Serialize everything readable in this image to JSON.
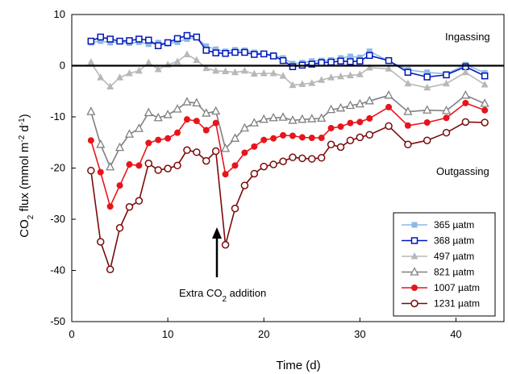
{
  "chart_data": {
    "type": "line",
    "xlabel": "Time (d)",
    "ylabel": {
      "prefix": "CO",
      "sub": "2",
      "middle": " flux (mmol m",
      "sup1": "-2",
      "space": " d",
      "sup2": "-1",
      "suffix": ")"
    },
    "xlim": [
      0,
      45
    ],
    "ylim": [
      -50,
      10
    ],
    "x_ticks": [
      0,
      10,
      20,
      30,
      40
    ],
    "y_ticks": [
      -50,
      -40,
      -30,
      -20,
      -10,
      0,
      10
    ],
    "zero_line": 0,
    "annotations": {
      "ingassing": "Ingassing",
      "outgassing": "Outgassing",
      "extra": {
        "prefix": "Extra CO",
        "sub": "2",
        "suffix": " addition"
      }
    },
    "series": [
      {
        "name": "365 µatm",
        "color": "#8db9e6",
        "marker": "square-filled",
        "x": [
          2,
          3,
          4,
          5,
          6,
          7,
          8,
          9,
          10,
          11,
          12,
          13,
          14,
          15,
          16,
          17,
          18,
          19,
          20,
          21,
          22,
          23,
          24,
          25,
          26,
          27,
          28,
          29,
          30,
          31,
          33,
          35,
          37,
          39,
          41,
          43
        ],
        "y": [
          4.5,
          4.8,
          4.5,
          4.7,
          4.4,
          4.6,
          4.2,
          4.5,
          4.3,
          4.6,
          5.2,
          5.5,
          3.8,
          3.2,
          2.8,
          3.1,
          3.0,
          2.6,
          2.3,
          2.1,
          1.5,
          0.4,
          0.6,
          0.9,
          1.0,
          1.1,
          1.5,
          1.8,
          1.6,
          2.8,
          0.9,
          -0.8,
          -1.3,
          -1.6,
          0.2,
          -1.4
        ]
      },
      {
        "name": "368 µatm",
        "color": "#0018b8",
        "marker": "square-open",
        "x": [
          2,
          3,
          4,
          5,
          6,
          7,
          8,
          9,
          10,
          11,
          12,
          13,
          14,
          15,
          16,
          17,
          18,
          19,
          20,
          21,
          22,
          23,
          24,
          25,
          26,
          27,
          28,
          29,
          30,
          31,
          33,
          35,
          37,
          39,
          41,
          43
        ],
        "y": [
          4.8,
          5.6,
          5.2,
          4.8,
          4.9,
          5.2,
          5.0,
          3.9,
          4.5,
          5.3,
          5.9,
          5.6,
          3.0,
          2.5,
          2.4,
          2.6,
          2.6,
          2.2,
          2.3,
          1.9,
          1.0,
          -0.2,
          0.1,
          0.3,
          0.6,
          0.7,
          0.9,
          0.8,
          0.9,
          2.0,
          1.0,
          -1.3,
          -2.2,
          -1.8,
          -0.2,
          -2.0
        ]
      },
      {
        "name": "497 µatm",
        "color": "#b8b8b8",
        "marker": "triangle-filled",
        "x": [
          2,
          3,
          4,
          5,
          6,
          7,
          8,
          9,
          10,
          11,
          12,
          13,
          14,
          15,
          16,
          17,
          18,
          19,
          20,
          21,
          22,
          23,
          24,
          25,
          26,
          27,
          28,
          29,
          30,
          31,
          33,
          35,
          37,
          39,
          41,
          43
        ],
        "y": [
          0.7,
          -2.3,
          -4.1,
          -2.3,
          -1.5,
          -1.0,
          0.6,
          -0.7,
          0.2,
          0.8,
          2.2,
          1.1,
          -0.5,
          -1.0,
          -1.1,
          -1.3,
          -1.0,
          -1.6,
          -1.5,
          -1.5,
          -2.0,
          -3.8,
          -3.6,
          -3.4,
          -2.8,
          -2.3,
          -2.1,
          -1.9,
          -1.7,
          -0.4,
          -0.6,
          -3.5,
          -4.3,
          -3.5,
          -1.3,
          -3.7
        ]
      },
      {
        "name": "821 µatm",
        "color": "#808080",
        "marker": "triangle-open",
        "x": [
          2,
          3,
          4,
          5,
          6,
          7,
          8,
          9,
          10,
          11,
          12,
          13,
          14,
          15,
          16,
          17,
          18,
          19,
          20,
          21,
          22,
          23,
          24,
          25,
          26,
          27,
          28,
          29,
          30,
          31,
          33,
          35,
          37,
          39,
          41,
          43
        ],
        "y": [
          -9.0,
          -15.4,
          -19.8,
          -16.0,
          -13.4,
          -12.3,
          -9.2,
          -10.2,
          -9.6,
          -8.5,
          -7.1,
          -7.3,
          -9.3,
          -8.9,
          -16.2,
          -14.2,
          -12.2,
          -11.2,
          -10.5,
          -10.2,
          -10.1,
          -10.7,
          -10.5,
          -10.4,
          -10.3,
          -8.6,
          -8.3,
          -7.8,
          -7.5,
          -6.9,
          -5.8,
          -9.0,
          -8.7,
          -8.8,
          -5.8,
          -7.4
        ]
      },
      {
        "name": "1007 µatm",
        "color": "#e8141c",
        "marker": "circle-filled",
        "x": [
          2,
          3,
          4,
          5,
          6,
          7,
          8,
          9,
          10,
          11,
          12,
          13,
          14,
          15,
          16,
          17,
          18,
          19,
          20,
          21,
          22,
          23,
          24,
          25,
          26,
          27,
          28,
          29,
          30,
          31,
          33,
          35,
          37,
          39,
          41,
          43
        ],
        "y": [
          -14.6,
          -20.8,
          -27.5,
          -23.4,
          -19.3,
          -19.5,
          -15.1,
          -14.5,
          -14.2,
          -13.1,
          -10.5,
          -10.8,
          -12.6,
          -11.2,
          -21.2,
          -19.5,
          -17.0,
          -15.8,
          -14.5,
          -14.2,
          -13.6,
          -13.7,
          -14.0,
          -14.1,
          -14.1,
          -12.2,
          -11.9,
          -11.2,
          -11.0,
          -10.3,
          -8.1,
          -11.7,
          -11.1,
          -10.2,
          -7.3,
          -8.7
        ]
      },
      {
        "name": "1231 µatm",
        "color": "#7a0a0a",
        "marker": "circle-open",
        "x": [
          2,
          3,
          4,
          5,
          6,
          7,
          8,
          9,
          10,
          11,
          12,
          13,
          14,
          15,
          16,
          17,
          18,
          19,
          20,
          21,
          22,
          23,
          24,
          25,
          26,
          27,
          28,
          29,
          30,
          31,
          33,
          35,
          37,
          39,
          41,
          43
        ],
        "y": [
          -20.5,
          -34.4,
          -39.8,
          -31.7,
          -27.6,
          -26.4,
          -19.1,
          -20.4,
          -20.1,
          -19.5,
          -16.5,
          -16.9,
          -18.6,
          -16.7,
          -35.0,
          -27.9,
          -23.4,
          -21.1,
          -19.7,
          -19.3,
          -18.7,
          -17.9,
          -18.1,
          -18.2,
          -18.0,
          -15.4,
          -15.9,
          -14.6,
          -14.0,
          -13.5,
          -11.8,
          -15.4,
          -14.6,
          -13.1,
          -11.0,
          -11.1
        ]
      }
    ]
  }
}
